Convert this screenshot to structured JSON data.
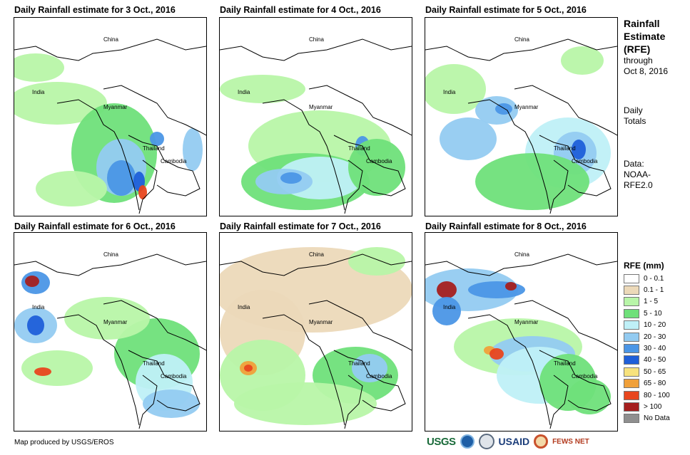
{
  "panels": [
    {
      "title": "Daily Rainfall estimate for 3 Oct., 2016",
      "labels": [
        "China",
        "India",
        "Myanmar",
        "Thailand",
        "Cambodia"
      ]
    },
    {
      "title": "Daily Rainfall estimate for 4 Oct., 2016",
      "labels": [
        "China",
        "India",
        "Myanmar",
        "Thailand",
        "Cambodia"
      ]
    },
    {
      "title": "Daily Rainfall estimate for 5 Oct., 2016",
      "labels": [
        "China",
        "India",
        "Myanmar",
        "Thailand",
        "Cambodia"
      ]
    },
    {
      "title": "Daily Rainfall estimate for 6 Oct., 2016",
      "labels": [
        "China",
        "India",
        "Myanmar",
        "Thailand",
        "Cambodia"
      ]
    },
    {
      "title": "Daily Rainfall estimate for 7 Oct., 2016",
      "labels": [
        "China",
        "India",
        "Myanmar",
        "Thailand",
        "Cambodia"
      ]
    },
    {
      "title": "Daily Rainfall estimate for 8 Oct., 2016",
      "labels": [
        "China",
        "India",
        "Myanmar",
        "Thailand",
        "Cambodia"
      ]
    }
  ],
  "side": {
    "title_lines": [
      "Rainfall",
      "Estimate",
      "(RFE)"
    ],
    "through_lines": [
      "through",
      "Oct 8, 2016"
    ],
    "totals_lines": [
      "Daily",
      "Totals"
    ],
    "data_lines": [
      "Data:",
      "NOAA-",
      "RFE2.0"
    ]
  },
  "legend": {
    "title": "RFE (mm)",
    "items": [
      {
        "label": "0 - 0.1",
        "color": "#ffffff"
      },
      {
        "label": "0.1 - 1",
        "color": "#ecd9b9"
      },
      {
        "label": "1 - 5",
        "color": "#b8f5a8"
      },
      {
        "label": "5 - 10",
        "color": "#6fe07a"
      },
      {
        "label": "10 - 20",
        "color": "#bff0f7"
      },
      {
        "label": "20 - 30",
        "color": "#93cbf1"
      },
      {
        "label": "30 - 40",
        "color": "#4b96e6"
      },
      {
        "label": "40 - 50",
        "color": "#1f5fd9"
      },
      {
        "label": "50 - 65",
        "color": "#f7e27d"
      },
      {
        "label": "65 - 80",
        "color": "#f0a03a"
      },
      {
        "label": "80 - 100",
        "color": "#e8461e"
      },
      {
        "label": "> 100",
        "color": "#a51f1f"
      },
      {
        "label": "No Data",
        "color": "#8f8f8f"
      }
    ]
  },
  "credit": "Map produced by USGS/EROS",
  "logos": {
    "usgs": "USGS",
    "usaid": "USAID",
    "fews": "FEWS NET"
  }
}
